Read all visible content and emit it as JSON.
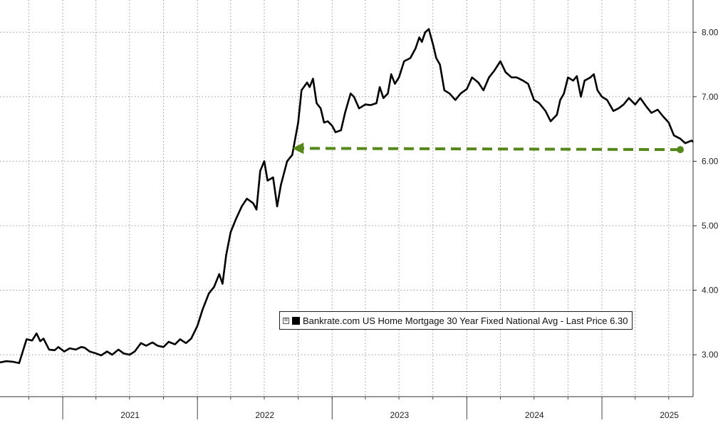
{
  "chart_data": {
    "type": "line",
    "title": "",
    "xlabel": "",
    "ylabel": "",
    "x_tick_labels": [
      "2021",
      "2022",
      "2023",
      "2024",
      "2025"
    ],
    "y_tick_labels": [
      "3.00",
      "4.00",
      "5.00",
      "6.00",
      "7.00",
      "8.00"
    ],
    "y_ticks": [
      3,
      4,
      5,
      6,
      7,
      8
    ],
    "ylim": [
      2.35,
      8.5
    ],
    "xlim": [
      "2020-07-15",
      "2025-09-05"
    ],
    "grid": true,
    "legend_placement": "lower-right",
    "series": [
      {
        "name": "Bankrate.com US Home Mortgage 30 Year Fixed National Avg",
        "color": "#000000",
        "points": [
          [
            "2020-07-15",
            2.88
          ],
          [
            "2020-08-01",
            2.9
          ],
          [
            "2020-08-20",
            2.89
          ],
          [
            "2020-09-05",
            2.87
          ],
          [
            "2020-09-25",
            3.24
          ],
          [
            "2020-10-10",
            3.22
          ],
          [
            "2020-10-22",
            3.33
          ],
          [
            "2020-11-01",
            3.21
          ],
          [
            "2020-11-10",
            3.25
          ],
          [
            "2020-11-25",
            3.08
          ],
          [
            "2020-12-10",
            3.07
          ],
          [
            "2020-12-20",
            3.12
          ],
          [
            "2021-01-05",
            3.05
          ],
          [
            "2021-01-20",
            3.1
          ],
          [
            "2021-02-05",
            3.08
          ],
          [
            "2021-02-20",
            3.12
          ],
          [
            "2021-03-01",
            3.11
          ],
          [
            "2021-03-15",
            3.05
          ],
          [
            "2021-04-01",
            3.02
          ],
          [
            "2021-04-15",
            2.99
          ],
          [
            "2021-05-01",
            3.05
          ],
          [
            "2021-05-15",
            3.0
          ],
          [
            "2021-06-01",
            3.08
          ],
          [
            "2021-06-15",
            3.02
          ],
          [
            "2021-07-01",
            3.0
          ],
          [
            "2021-07-15",
            3.05
          ],
          [
            "2021-08-01",
            3.18
          ],
          [
            "2021-08-15",
            3.14
          ],
          [
            "2021-09-01",
            3.19
          ],
          [
            "2021-09-15",
            3.14
          ],
          [
            "2021-10-01",
            3.12
          ],
          [
            "2021-10-15",
            3.2
          ],
          [
            "2021-11-01",
            3.16
          ],
          [
            "2021-11-15",
            3.24
          ],
          [
            "2021-12-01",
            3.18
          ],
          [
            "2021-12-15",
            3.25
          ],
          [
            "2022-01-01",
            3.45
          ],
          [
            "2022-01-15",
            3.7
          ],
          [
            "2022-02-01",
            3.95
          ],
          [
            "2022-02-15",
            4.05
          ],
          [
            "2022-03-01",
            4.25
          ],
          [
            "2022-03-10",
            4.1
          ],
          [
            "2022-03-20",
            4.55
          ],
          [
            "2022-04-01",
            4.9
          ],
          [
            "2022-04-15",
            5.1
          ],
          [
            "2022-05-01",
            5.3
          ],
          [
            "2022-05-15",
            5.42
          ],
          [
            "2022-06-01",
            5.35
          ],
          [
            "2022-06-10",
            5.25
          ],
          [
            "2022-06-20",
            5.85
          ],
          [
            "2022-07-01",
            6.0
          ],
          [
            "2022-07-10",
            5.7
          ],
          [
            "2022-07-25",
            5.75
          ],
          [
            "2022-08-05",
            5.3
          ],
          [
            "2022-08-15",
            5.63
          ],
          [
            "2022-09-01",
            6.0
          ],
          [
            "2022-09-15",
            6.1
          ],
          [
            "2022-10-01",
            6.6
          ],
          [
            "2022-10-10",
            7.1
          ],
          [
            "2022-10-25",
            7.22
          ],
          [
            "2022-11-01",
            7.15
          ],
          [
            "2022-11-10",
            7.28
          ],
          [
            "2022-11-20",
            6.9
          ],
          [
            "2022-12-01",
            6.82
          ],
          [
            "2022-12-10",
            6.6
          ],
          [
            "2022-12-20",
            6.62
          ],
          [
            "2023-01-01",
            6.55
          ],
          [
            "2023-01-10",
            6.45
          ],
          [
            "2023-01-25",
            6.48
          ],
          [
            "2023-02-05",
            6.75
          ],
          [
            "2023-02-20",
            7.05
          ],
          [
            "2023-03-01",
            7.0
          ],
          [
            "2023-03-15",
            6.82
          ],
          [
            "2023-04-01",
            6.88
          ],
          [
            "2023-04-15",
            6.87
          ],
          [
            "2023-05-01",
            6.9
          ],
          [
            "2023-05-10",
            7.15
          ],
          [
            "2023-05-20",
            6.98
          ],
          [
            "2023-06-01",
            7.05
          ],
          [
            "2023-06-10",
            7.35
          ],
          [
            "2023-06-20",
            7.2
          ],
          [
            "2023-07-01",
            7.3
          ],
          [
            "2023-07-15",
            7.55
          ],
          [
            "2023-08-01",
            7.6
          ],
          [
            "2023-08-15",
            7.75
          ],
          [
            "2023-08-25",
            7.92
          ],
          [
            "2023-09-01",
            7.85
          ],
          [
            "2023-09-10",
            8.0
          ],
          [
            "2023-09-20",
            8.05
          ],
          [
            "2023-10-01",
            7.82
          ],
          [
            "2023-10-10",
            7.6
          ],
          [
            "2023-10-20",
            7.5
          ],
          [
            "2023-11-01",
            7.1
          ],
          [
            "2023-11-15",
            7.05
          ],
          [
            "2023-12-01",
            6.95
          ],
          [
            "2023-12-15",
            7.05
          ],
          [
            "2024-01-01",
            7.12
          ],
          [
            "2024-01-15",
            7.3
          ],
          [
            "2024-02-01",
            7.22
          ],
          [
            "2024-02-15",
            7.1
          ],
          [
            "2024-03-01",
            7.3
          ],
          [
            "2024-03-15",
            7.4
          ],
          [
            "2024-04-01",
            7.55
          ],
          [
            "2024-04-15",
            7.38
          ],
          [
            "2024-05-01",
            7.3
          ],
          [
            "2024-05-15",
            7.3
          ],
          [
            "2024-06-01",
            7.25
          ],
          [
            "2024-06-15",
            7.2
          ],
          [
            "2024-07-01",
            6.95
          ],
          [
            "2024-07-15",
            6.9
          ],
          [
            "2024-08-01",
            6.78
          ],
          [
            "2024-08-15",
            6.62
          ],
          [
            "2024-09-01",
            6.72
          ],
          [
            "2024-09-10",
            6.95
          ],
          [
            "2024-09-20",
            7.05
          ],
          [
            "2024-10-01",
            7.3
          ],
          [
            "2024-10-15",
            7.25
          ],
          [
            "2024-10-25",
            7.32
          ],
          [
            "2024-11-05",
            7.0
          ],
          [
            "2024-11-15",
            7.25
          ],
          [
            "2024-12-01",
            7.3
          ],
          [
            "2024-12-10",
            7.35
          ],
          [
            "2024-12-20",
            7.1
          ],
          [
            "2025-01-01",
            7.0
          ],
          [
            "2025-01-15",
            6.95
          ],
          [
            "2025-02-01",
            6.78
          ],
          [
            "2025-02-15",
            6.82
          ],
          [
            "2025-03-01",
            6.88
          ],
          [
            "2025-03-15",
            6.98
          ],
          [
            "2025-04-01",
            6.88
          ],
          [
            "2025-04-15",
            6.98
          ],
          [
            "2025-05-01",
            6.85
          ],
          [
            "2025-05-15",
            6.75
          ],
          [
            "2025-06-01",
            6.8
          ],
          [
            "2025-06-15",
            6.7
          ],
          [
            "2025-07-01",
            6.6
          ],
          [
            "2025-07-15",
            6.4
          ],
          [
            "2025-08-01",
            6.35
          ],
          [
            "2025-08-15",
            6.28
          ],
          [
            "2025-09-01",
            6.32
          ],
          [
            "2025-09-05",
            6.3
          ]
        ]
      }
    ],
    "annotations": [
      {
        "type": "dashed-arrow",
        "color": "#55881a",
        "from": [
          "2025-09-05",
          6.18
        ],
        "to": [
          "2022-09-15",
          6.2
        ],
        "description": "arrow from latest value back to the comparable level in 2022"
      }
    ],
    "legend": {
      "toggle_glyph": "⊠",
      "text": "Bankrate.com US Home Mortgage 30 Year Fixed National Avg - Last Price 6.30"
    }
  }
}
